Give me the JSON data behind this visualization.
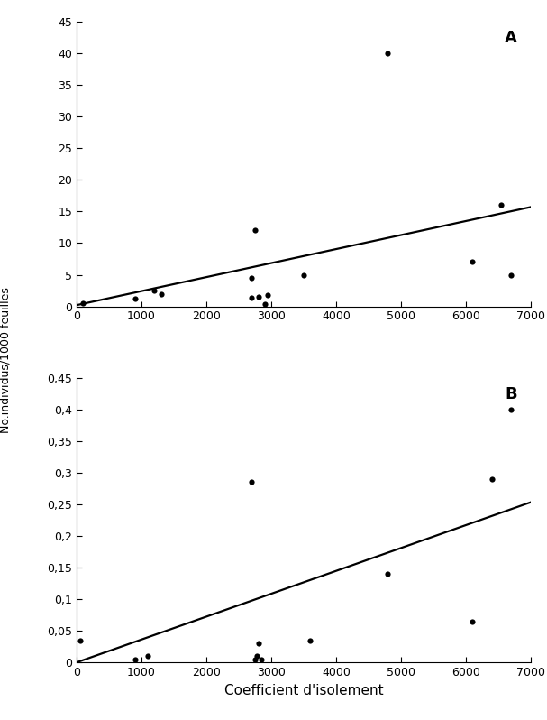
{
  "panel_A": {
    "label": "A",
    "scatter_x": [
      100,
      900,
      1200,
      1300,
      2700,
      2700,
      2750,
      2800,
      2900,
      2950,
      3500,
      4800,
      6100,
      6550,
      6700
    ],
    "scatter_y": [
      0.5,
      1.2,
      2.5,
      2.0,
      1.3,
      4.5,
      12.0,
      1.5,
      0.3,
      1.8,
      5.0,
      40.0,
      7.0,
      16.0,
      5.0
    ],
    "line_x": [
      0,
      7000
    ],
    "line_y": [
      0.2,
      15.7
    ],
    "ylim": [
      0,
      45
    ],
    "yticks": [
      0,
      5,
      10,
      15,
      20,
      25,
      30,
      35,
      40,
      45
    ]
  },
  "panel_B": {
    "label": "B",
    "scatter_x": [
      50,
      900,
      1100,
      2700,
      2750,
      2780,
      2800,
      2850,
      3600,
      4800,
      6100,
      6400,
      6700
    ],
    "scatter_y": [
      0.035,
      0.005,
      0.01,
      0.285,
      0.005,
      0.01,
      0.03,
      0.005,
      0.035,
      0.14,
      0.065,
      0.29,
      0.4
    ],
    "line_x": [
      0,
      7000
    ],
    "line_y": [
      0.0,
      0.253
    ],
    "ylim": [
      0,
      0.45
    ],
    "yticks": [
      0,
      0.05,
      0.1,
      0.15,
      0.2,
      0.25,
      0.3,
      0.35,
      0.4,
      0.45
    ]
  },
  "xlim": [
    0,
    7000
  ],
  "xticks": [
    0,
    1000,
    2000,
    3000,
    4000,
    5000,
    6000,
    7000
  ],
  "xlabel": "Coefficient d'isolement",
  "ylabel": "No.individus/1000 feuilles",
  "background_color": "#ffffff",
  "dot_color": "#000000",
  "line_color": "#000000",
  "dot_size": 20,
  "line_width": 1.6,
  "tick_labelsize": 9,
  "label_fontsize": 11,
  "panel_label_fontsize": 13
}
